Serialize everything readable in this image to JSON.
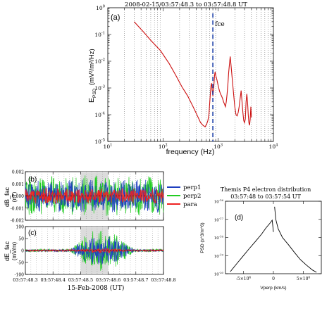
{
  "chart_data": [
    {
      "type": "line",
      "panel_label": "(a)",
      "title": "2008-02-15/03:57:48.3 to 03:57:48.8 UT",
      "xlabel": "frequency (Hz)",
      "ylabel_main": "E",
      "ylabel_sub": "PSD",
      "ylabel_units": "(mV²/m²/Hz)",
      "x_scale": "log",
      "y_scale": "log",
      "xlim": [
        10,
        10000
      ],
      "ylim": [
        1e-05,
        1
      ],
      "x_ticks": [
        {
          "value": 10,
          "base": "10",
          "exp": "1"
        },
        {
          "value": 100,
          "base": "10",
          "exp": "2"
        },
        {
          "value": 1000,
          "base": "10",
          "exp": "3"
        },
        {
          "value": 10000,
          "base": "10",
          "exp": "4"
        }
      ],
      "y_ticks": [
        {
          "value": 1e-05,
          "base": "10",
          "exp": "-5"
        },
        {
          "value": 0.0001,
          "base": "10",
          "exp": "-4"
        },
        {
          "value": 0.001,
          "base": "10",
          "exp": "-3"
        },
        {
          "value": 0.01,
          "base": "10",
          "exp": "-2"
        },
        {
          "value": 0.1,
          "base": "10",
          "exp": "-1"
        },
        {
          "value": 1,
          "base": "10",
          "exp": "0"
        }
      ],
      "grid": "vertical dotted",
      "fce_label": "fce",
      "fce_value": 800,
      "series": [
        {
          "color": "#cc1111",
          "x": [
            30,
            45,
            60,
            90,
            130,
            170,
            220,
            280,
            350,
            420,
            480,
            530,
            580,
            620,
            650,
            680,
            700,
            720,
            740,
            760,
            780,
            800,
            830,
            860,
            880,
            900,
            950,
            1000,
            1050,
            1100,
            1150,
            1200,
            1250,
            1300,
            1350,
            1400,
            1450,
            1500,
            1550,
            1600,
            1650,
            1700,
            1750,
            1800,
            1900,
            2000,
            2100,
            2200,
            2300,
            2400,
            2500,
            2600,
            2700,
            2800,
            2900,
            3000,
            3100,
            3200,
            3300,
            3400,
            3500,
            3600,
            3700,
            3800,
            3900,
            4000
          ],
          "y": [
            0.3,
            0.12,
            0.06,
            0.025,
            0.008,
            0.003,
            0.0011,
            0.0005,
            0.0002,
            9e-05,
            5e-05,
            4e-05,
            3.5e-05,
            4.5e-05,
            6e-05,
            0.0001,
            0.00025,
            0.0006,
            0.0012,
            0.0015,
            0.0008,
            0.0005,
            0.001,
            0.003,
            0.004,
            0.003,
            0.002,
            0.0012,
            0.0008,
            0.0006,
            0.0005,
            0.0004,
            0.0003,
            0.00025,
            0.0002,
            0.0003,
            0.0006,
            0.0015,
            0.004,
            0.008,
            0.015,
            0.008,
            0.004,
            0.002,
            0.0006,
            0.0002,
            0.0001,
            9e-05,
            0.00012,
            0.0002,
            0.0004,
            0.0008,
            0.0003,
            0.00012,
            6e-05,
            5e-05,
            7e-05,
            0.0003,
            0.0006,
            0.0003,
            0.0001,
            5e-05,
            4e-05,
            7e-05,
            0.0002,
            8e-05
          ]
        }
      ]
    },
    {
      "type": "line",
      "panel_label": "(b)",
      "ylabel": "dB_fac",
      "yunits": "(nT)",
      "ylim": [
        -0.002,
        0.002
      ],
      "y_ticks": [
        "0.002",
        "0.001",
        "0.000",
        "-0.001",
        "-0.002"
      ],
      "shaded_band": [
        48.5,
        48.6
      ],
      "legend": [
        {
          "name": "perp1",
          "color": "#1f3fbf"
        },
        {
          "name": "perp2",
          "color": "#22cc22"
        },
        {
          "name": "para",
          "color": "#ee2222"
        }
      ],
      "noise_amplitude": {
        "perp1": 0.0011,
        "perp2": 0.00085,
        "para": 0.0005
      }
    },
    {
      "type": "line",
      "panel_label": "(c)",
      "ylabel": "dE_fac",
      "yunits": "(mV/m)",
      "ylim": [
        -100,
        100
      ],
      "y_ticks": [
        "100",
        "50",
        "0",
        "-50",
        "-100"
      ],
      "shaded_band": [
        48.5,
        48.6
      ],
      "x_ticks": [
        "03:57:48.3",
        "03:57:48.4",
        "03:57:48.5",
        "03:57:48.6",
        "03:57:48.7",
        "03:57:48.8"
      ],
      "xlabel": "15-Feb-2008 (UT)",
      "xlim": [
        48.3,
        48.8
      ]
    },
    {
      "type": "line",
      "panel_label": "(d)",
      "title_line1": "Themis P4 electron distribution",
      "title_line2": "03:57:48 to 03:57:54 UT",
      "ylabel": "PSD (s^3/m^6)",
      "xlabel": "Vperp (km/s)",
      "y_scale": "log",
      "ylim": [
        1e-20,
        1e-16
      ],
      "y_ticks": [
        {
          "base": "10",
          "exp": "-16"
        },
        {
          "base": "10",
          "exp": "-17"
        },
        {
          "base": "10",
          "exp": "-18"
        },
        {
          "base": "10",
          "exp": "-19"
        },
        {
          "base": "10",
          "exp": "-20"
        }
      ],
      "x_ticks": [
        {
          "value": -50000,
          "label": "-5×10",
          "exp": "4"
        },
        {
          "value": 0,
          "label": "0",
          "exp": ""
        },
        {
          "value": 50000,
          "label": "5×10",
          "exp": "4"
        }
      ],
      "xlim": [
        -80000,
        80000
      ],
      "series": [
        {
          "color": "#000000",
          "x": [
            -72000,
            -60000,
            -50000,
            -40000,
            -30000,
            -20000,
            -12000,
            -6000,
            -2000,
            0,
            2000,
            4000,
            8000,
            15000,
            25000,
            35000,
            45000,
            55000,
            65000,
            72000
          ],
          "y": [
            1.3e-20,
            4e-20,
            1e-19,
            2.5e-19,
            6e-19,
            1.5e-18,
            3.5e-18,
            6e-18,
            9e-18,
            2e-18,
            5e-17,
            1e-17,
            3e-18,
            1e-18,
            4e-19,
            1.5e-19,
            6e-20,
            3e-20,
            1.6e-20,
            1.2e-20
          ]
        }
      ]
    }
  ]
}
